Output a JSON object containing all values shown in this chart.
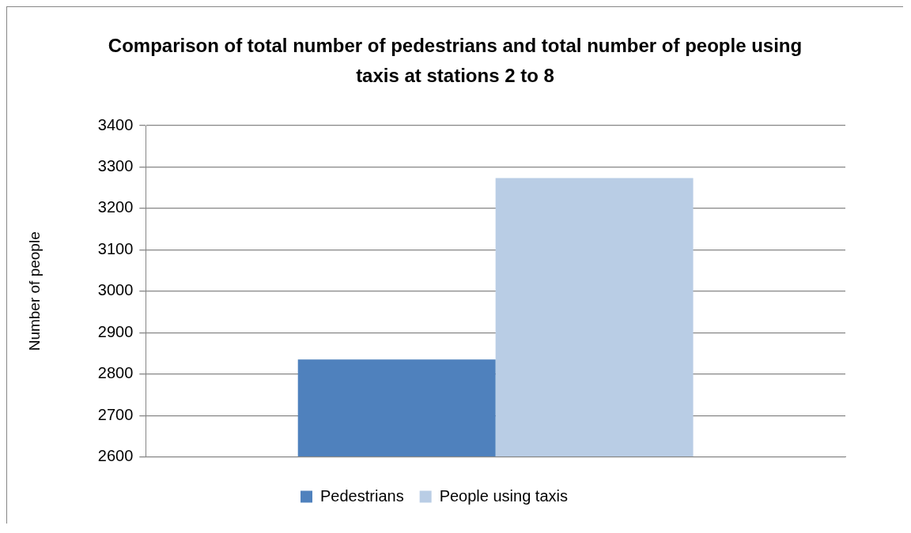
{
  "chart_data": {
    "type": "bar",
    "title": "Comparison of total number of pedestrians and total number of people using taxis at stations 2 to 8",
    "ylabel": "Number of people",
    "categories": [
      null
    ],
    "series": [
      {
        "name": "Pedestrians",
        "color": "#4f81bd",
        "values": [
          2835
        ]
      },
      {
        "name": "People using taxis",
        "color": "#b9cde5",
        "values": [
          3273
        ]
      }
    ],
    "ylim": [
      2600,
      3400
    ],
    "yticks": [
      2600,
      2700,
      2800,
      2900,
      3000,
      3100,
      3200,
      3300,
      3400
    ],
    "grid": "y",
    "legend": "bottom"
  }
}
